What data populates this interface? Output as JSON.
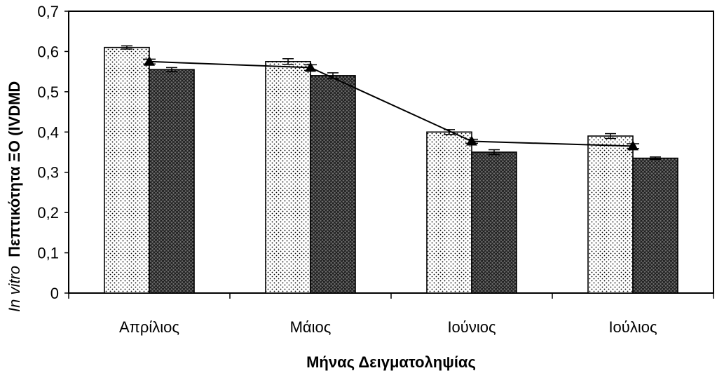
{
  "chart_data": {
    "type": "bar",
    "title": "",
    "xlabel": "Μήνας Δειγματοληψίας",
    "ylabel_prefix": "In vitro",
    "ylabel": "Πεπτικότητα ΞΟ (IVDMD",
    "categories": [
      "Απρίλιος",
      "Μάιος",
      "Ιούνιος",
      "Ιούλιος"
    ],
    "ylim": [
      0,
      0.7
    ],
    "yticks": [
      "0",
      "0,1",
      "0,2",
      "0,3",
      "0,4",
      "0,5",
      "0,6",
      "0,7"
    ],
    "grid": false,
    "legend": "none",
    "series": [
      {
        "values": [
          0.61,
          0.575,
          0.4,
          0.39
        ],
        "errors": [
          0.004,
          0.007,
          0.006,
          0.006
        ],
        "pattern": "light-dotted",
        "kind": "bar"
      },
      {
        "values": [
          0.555,
          0.54,
          0.35,
          0.335
        ],
        "errors": [
          0.005,
          0.007,
          0.006,
          0.003
        ],
        "pattern": "dark-crosshatch",
        "kind": "bar"
      },
      {
        "values": [
          0.575,
          0.56,
          0.377,
          0.365
        ],
        "errors": [
          0.006,
          0.007,
          0.005,
          0.006
        ],
        "marker": "triangle",
        "kind": "line"
      }
    ]
  }
}
